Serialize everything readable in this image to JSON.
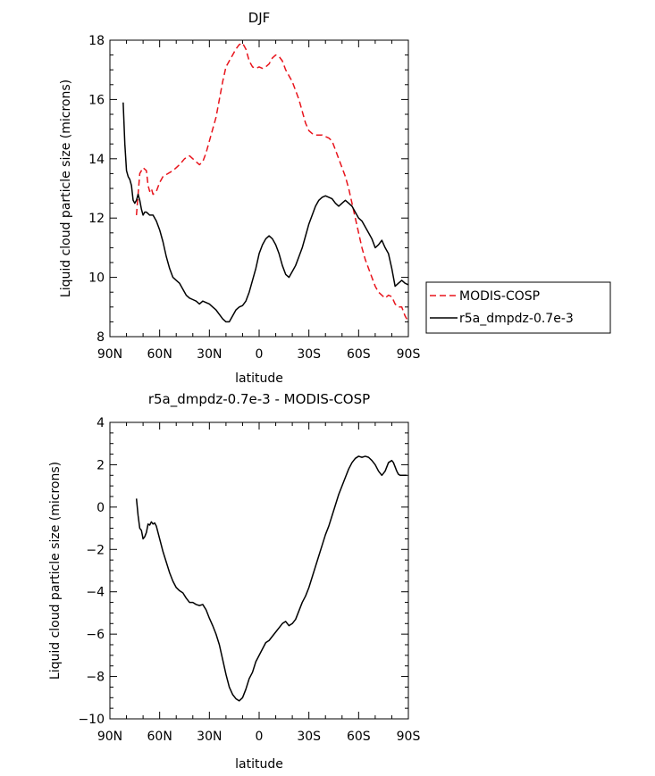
{
  "chart_data": [
    {
      "type": "line",
      "title": "DJF",
      "xlabel": "latitude",
      "ylabel": "Liquid cloud particle size (microns)",
      "xlim": [
        90,
        -90
      ],
      "ylim": [
        8,
        18
      ],
      "xticks": [
        90,
        60,
        30,
        0,
        -30,
        -60,
        -90
      ],
      "xtick_labels": [
        "90N",
        "60N",
        "30N",
        "0",
        "30S",
        "60S",
        "90S"
      ],
      "yticks": [
        8,
        10,
        12,
        14,
        16,
        18
      ],
      "ytick_labels": [
        "8",
        "10",
        "12",
        "14",
        "16",
        "18"
      ],
      "legend_position": "right",
      "series": [
        {
          "name": "MODIS-COSP",
          "color": "#e8141c",
          "dash": "dashed",
          "x": [
            74,
            73,
            72,
            70,
            68,
            67,
            66,
            65,
            64,
            62,
            60,
            58,
            55,
            52,
            50,
            48,
            45,
            42,
            40,
            38,
            36,
            34,
            32,
            30,
            28,
            26,
            24,
            22,
            20,
            18,
            16,
            14,
            12,
            10,
            8,
            6,
            4,
            2,
            0,
            -2,
            -4,
            -6,
            -8,
            -10,
            -12,
            -14,
            -16,
            -18,
            -20,
            -22,
            -24,
            -26,
            -28,
            -30,
            -32,
            -34,
            -36,
            -38,
            -40,
            -42,
            -44,
            -46,
            -48,
            -50,
            -52,
            -54,
            -56,
            -58,
            -60,
            -62,
            -64,
            -66,
            -68,
            -70,
            -72,
            -74,
            -76,
            -78,
            -80,
            -82,
            -84,
            -86,
            -88,
            -90
          ],
          "y": [
            12.1,
            12.8,
            13.5,
            13.7,
            13.6,
            13.1,
            12.9,
            13.0,
            12.8,
            12.9,
            13.2,
            13.4,
            13.5,
            13.6,
            13.7,
            13.8,
            14.0,
            14.1,
            14.0,
            13.9,
            13.8,
            13.9,
            14.2,
            14.6,
            15.0,
            15.4,
            16.0,
            16.6,
            17.1,
            17.3,
            17.5,
            17.7,
            17.85,
            17.9,
            17.7,
            17.3,
            17.1,
            17.05,
            17.1,
            17.05,
            17.1,
            17.2,
            17.4,
            17.5,
            17.45,
            17.3,
            17.0,
            16.8,
            16.6,
            16.3,
            16.0,
            15.6,
            15.2,
            14.95,
            14.85,
            14.8,
            14.8,
            14.8,
            14.75,
            14.7,
            14.6,
            14.3,
            14.0,
            13.7,
            13.4,
            13.0,
            12.5,
            12.0,
            11.5,
            11.0,
            10.6,
            10.3,
            10.0,
            9.7,
            9.5,
            9.4,
            9.3,
            9.4,
            9.35,
            9.1,
            9.0,
            9.0,
            8.7,
            8.5
          ]
        },
        {
          "name": "r5a_dmpdz-0.7e-3",
          "color": "#000000",
          "dash": "solid",
          "x": [
            82,
            81,
            80,
            79,
            78,
            77,
            76,
            75,
            74,
            73,
            72,
            71,
            70,
            69,
            68,
            67,
            66,
            64,
            62,
            60,
            58,
            56,
            54,
            52,
            50,
            48,
            46,
            44,
            42,
            40,
            38,
            36,
            34,
            32,
            30,
            28,
            26,
            24,
            22,
            20,
            18,
            16,
            14,
            12,
            10,
            8,
            6,
            4,
            2,
            0,
            -2,
            -4,
            -6,
            -8,
            -10,
            -12,
            -14,
            -16,
            -18,
            -20,
            -22,
            -24,
            -26,
            -28,
            -30,
            -32,
            -34,
            -36,
            -38,
            -40,
            -42,
            -44,
            -46,
            -48,
            -50,
            -52,
            -54,
            -56,
            -58,
            -60,
            -62,
            -64,
            -66,
            -68,
            -70,
            -72,
            -74,
            -76,
            -78,
            -80,
            -82,
            -84,
            -86,
            -88,
            -90
          ],
          "y": [
            15.9,
            14.5,
            13.6,
            13.4,
            13.3,
            13.1,
            12.6,
            12.5,
            12.6,
            12.8,
            12.6,
            12.3,
            12.1,
            12.2,
            12.2,
            12.15,
            12.1,
            12.1,
            11.9,
            11.6,
            11.2,
            10.7,
            10.3,
            10.0,
            9.9,
            9.8,
            9.6,
            9.4,
            9.3,
            9.25,
            9.2,
            9.1,
            9.2,
            9.15,
            9.1,
            9.0,
            8.9,
            8.75,
            8.6,
            8.5,
            8.5,
            8.7,
            8.9,
            9.0,
            9.05,
            9.2,
            9.5,
            9.9,
            10.3,
            10.8,
            11.1,
            11.3,
            11.4,
            11.3,
            11.1,
            10.8,
            10.4,
            10.1,
            10.0,
            10.2,
            10.4,
            10.7,
            11.0,
            11.4,
            11.8,
            12.1,
            12.4,
            12.6,
            12.7,
            12.75,
            12.7,
            12.65,
            12.5,
            12.4,
            12.5,
            12.6,
            12.5,
            12.4,
            12.2,
            12.0,
            11.9,
            11.7,
            11.5,
            11.3,
            11.0,
            11.1,
            11.25,
            11.0,
            10.8,
            10.3,
            9.7,
            9.8,
            9.9,
            9.8,
            9.75
          ]
        }
      ]
    },
    {
      "type": "line",
      "title": "r5a_dmpdz-0.7e-3 - MODIS-COSP",
      "xlabel": "latitude",
      "ylabel": "Liquid cloud particle size (microns)",
      "xlim": [
        90,
        -90
      ],
      "ylim": [
        -10,
        4
      ],
      "xticks": [
        90,
        60,
        30,
        0,
        -30,
        -60,
        -90
      ],
      "xtick_labels": [
        "90N",
        "60N",
        "30N",
        "0",
        "30S",
        "60S",
        "90S"
      ],
      "yticks": [
        -10,
        -8,
        -6,
        -4,
        -2,
        0,
        2,
        4
      ],
      "ytick_labels": [
        "−10",
        "−8",
        "−6",
        "−4",
        "−2",
        "0",
        "2",
        "4"
      ],
      "series": [
        {
          "name": "r5a_dmpdz-0.7e-3 - MODIS-COSP",
          "color": "#000000",
          "dash": "solid",
          "x": [
            74,
            73,
            72,
            71,
            70,
            69,
            68,
            67,
            66,
            65,
            64,
            63,
            62,
            60,
            58,
            56,
            54,
            52,
            50,
            48,
            46,
            44,
            42,
            40,
            38,
            36,
            34,
            32,
            30,
            28,
            26,
            24,
            22,
            20,
            18,
            16,
            14,
            12,
            10,
            8,
            6,
            4,
            2,
            0,
            -2,
            -4,
            -6,
            -8,
            -10,
            -12,
            -14,
            -16,
            -18,
            -20,
            -22,
            -24,
            -26,
            -28,
            -30,
            -32,
            -34,
            -36,
            -38,
            -40,
            -42,
            -44,
            -46,
            -48,
            -50,
            -52,
            -54,
            -56,
            -58,
            -60,
            -62,
            -64,
            -66,
            -68,
            -70,
            -72,
            -74,
            -76,
            -78,
            -80,
            -81,
            -82,
            -83,
            -84,
            -85,
            -86,
            -87,
            -88,
            -89
          ],
          "y": [
            0.4,
            -0.4,
            -1.0,
            -1.1,
            -1.5,
            -1.4,
            -1.2,
            -0.8,
            -0.85,
            -0.7,
            -0.8,
            -0.75,
            -0.9,
            -1.5,
            -2.1,
            -2.6,
            -3.1,
            -3.5,
            -3.8,
            -3.95,
            -4.05,
            -4.3,
            -4.5,
            -4.5,
            -4.6,
            -4.65,
            -4.6,
            -4.85,
            -5.25,
            -5.6,
            -6.0,
            -6.5,
            -7.2,
            -7.9,
            -8.5,
            -8.85,
            -9.05,
            -9.15,
            -9.0,
            -8.6,
            -8.1,
            -7.8,
            -7.3,
            -7.0,
            -6.7,
            -6.4,
            -6.3,
            -6.1,
            -5.9,
            -5.7,
            -5.5,
            -5.4,
            -5.6,
            -5.5,
            -5.3,
            -4.9,
            -4.5,
            -4.2,
            -3.8,
            -3.3,
            -2.8,
            -2.3,
            -1.8,
            -1.3,
            -0.9,
            -0.4,
            0.1,
            0.6,
            1.0,
            1.4,
            1.8,
            2.1,
            2.3,
            2.4,
            2.35,
            2.4,
            2.35,
            2.2,
            2.0,
            1.7,
            1.5,
            1.7,
            2.1,
            2.2,
            2.1,
            1.9,
            1.7,
            1.55,
            1.5,
            1.5,
            1.5,
            1.5,
            1.5
          ]
        }
      ]
    }
  ]
}
